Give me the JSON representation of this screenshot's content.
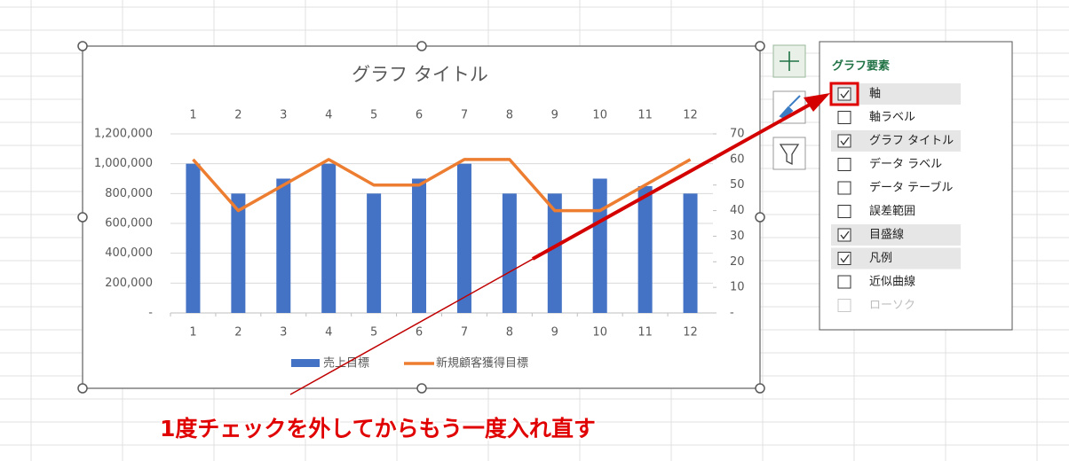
{
  "chart_data": {
    "type": "combo",
    "title": "グラフ タイトル",
    "categories": [
      "1",
      "2",
      "3",
      "4",
      "5",
      "6",
      "7",
      "8",
      "9",
      "10",
      "11",
      "12"
    ],
    "series": [
      {
        "name": "売上目標",
        "color": "#4472c4",
        "type": "bar",
        "values": [
          1000000,
          800000,
          900000,
          1000000,
          800000,
          900000,
          1000000,
          800000,
          800000,
          900000,
          850000,
          800000
        ]
      },
      {
        "name": "新規顧客獲得目標",
        "color": "#ed7d31",
        "type": "line",
        "axis": "y2",
        "values": [
          60,
          40,
          50,
          60,
          50,
          50,
          60,
          60,
          40,
          40,
          50,
          60
        ]
      }
    ],
    "ylim": [
      0,
      1200000
    ],
    "yticks": [
      {
        "value": 0,
        "label": "-"
      },
      {
        "value": 200000,
        "label": "200,000"
      },
      {
        "value": 400000,
        "label": "400,000"
      },
      {
        "value": 600000,
        "label": "600,000"
      },
      {
        "value": 800000,
        "label": "800,000"
      },
      {
        "value": 1000000,
        "label": "1,000,000"
      },
      {
        "value": 1200000,
        "label": "1,200,000"
      }
    ],
    "y2lim": [
      0,
      70
    ],
    "y2ticks": [
      {
        "value": 0,
        "label": "-"
      },
      10,
      20,
      30,
      40,
      50,
      60,
      70
    ],
    "grid": true,
    "legend": "bottom"
  },
  "panel": {
    "title": "グラフ要素",
    "items": [
      {
        "label": "軸",
        "checked": true,
        "highlighted": true
      },
      {
        "label": "軸ラベル",
        "checked": false,
        "highlighted": false
      },
      {
        "label": "グラフ タイトル",
        "checked": true,
        "highlighted": true
      },
      {
        "label": "データ ラベル",
        "checked": false,
        "highlighted": false
      },
      {
        "label": "データ テーブル",
        "checked": false,
        "highlighted": false
      },
      {
        "label": "誤差範囲",
        "checked": false,
        "highlighted": false
      },
      {
        "label": "目盛線",
        "checked": true,
        "highlighted": true
      },
      {
        "label": "凡例",
        "checked": true,
        "highlighted": true
      },
      {
        "label": "近似曲線",
        "checked": false,
        "highlighted": false
      },
      {
        "label": "ローソク",
        "checked": false,
        "highlighted": false,
        "disabled": true
      }
    ]
  },
  "annotation": "1度チェックを外してからもう一度入れ直す"
}
